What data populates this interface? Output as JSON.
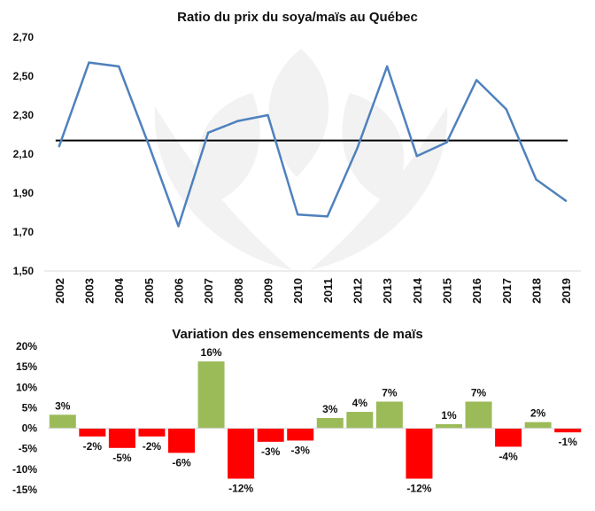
{
  "chart_data": [
    {
      "type": "line",
      "title": "Ratio du prix du soya/maïs au Québec",
      "categories": [
        "2002",
        "2003",
        "2004",
        "2005",
        "2006",
        "2007",
        "2008",
        "2009",
        "2010",
        "2011",
        "2012",
        "2013",
        "2014",
        "2015",
        "2016",
        "2017",
        "2018",
        "2019"
      ],
      "series": [
        {
          "values": [
            2.14,
            2.57,
            2.55,
            2.15,
            1.73,
            2.21,
            2.27,
            2.3,
            1.79,
            1.78,
            2.13,
            2.55,
            2.09,
            2.16,
            2.48,
            2.33,
            1.97,
            1.86
          ],
          "color": "#4f81bd"
        }
      ],
      "reference_line": {
        "value": 2.17,
        "color": "#000000"
      },
      "ylim": [
        1.5,
        2.7
      ],
      "yticks": [
        "1,50",
        "1,70",
        "1,90",
        "2,10",
        "2,30",
        "2,50",
        "2,70"
      ],
      "grid": false,
      "legend": "none"
    },
    {
      "type": "bar",
      "title": "Variation des ensemencements de maïs",
      "categories": [
        "2002",
        "2003",
        "2004",
        "2005",
        "2006",
        "2007",
        "2008",
        "2009",
        "2010",
        "2011",
        "2012",
        "2013",
        "2014",
        "2015",
        "2016",
        "2017",
        "2018",
        "2019"
      ],
      "values": [
        3,
        -2,
        -5,
        -2,
        -6,
        16,
        -12,
        -3,
        -3,
        3,
        4,
        7,
        -12,
        1,
        7,
        -4,
        2,
        -1
      ],
      "bar_heights_percent": [
        3.3,
        -2.0,
        -4.8,
        -2.0,
        -6.0,
        16.3,
        -12.3,
        -3.3,
        -3.0,
        2.5,
        4.0,
        6.5,
        -12.3,
        1.0,
        6.5,
        -4.5,
        1.5,
        -1.0
      ],
      "data_labels": [
        "3%",
        "-2%",
        "-5%",
        "-2%",
        "-6%",
        "16%",
        "-12%",
        "-3%",
        "-3%",
        "3%",
        "4%",
        "7%",
        "-12%",
        "1%",
        "7%",
        "-4%",
        "2%",
        "-1%"
      ],
      "ylim": [
        -15,
        20
      ],
      "yticks": [
        "-15%",
        "-10%",
        "-5%",
        "0%",
        "5%",
        "10%",
        "15%",
        "20%"
      ],
      "positive_color": "#9bbb59",
      "negative_color": "#ff0000",
      "grid": false,
      "legend": "none"
    }
  ],
  "watermark": {
    "color": "#f2f2f2"
  }
}
